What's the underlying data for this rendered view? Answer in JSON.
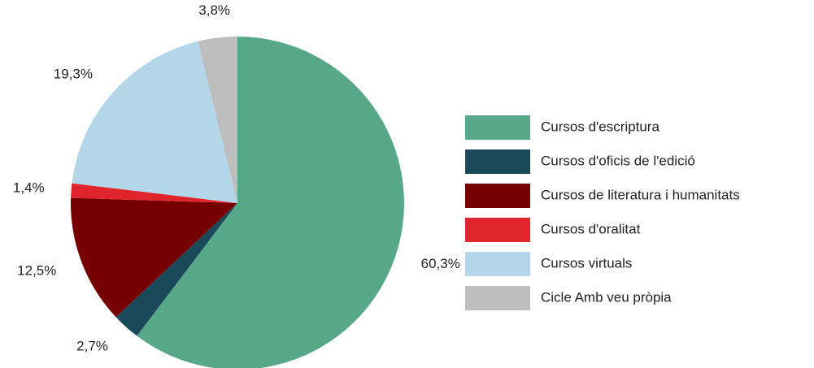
{
  "chart_data": {
    "type": "pie",
    "series": [
      {
        "name": "Cursos d'escriptura",
        "color": "#57a789",
        "values": [
          60.3
        ],
        "value_labels": [
          "60,3%"
        ]
      },
      {
        "name": "Cursos d'oficis de l'edició",
        "color": "#1a4a5a",
        "values": [
          2.7
        ],
        "value_labels": [
          "2,7%"
        ]
      },
      {
        "name": "Cursos de literatura i humanitats",
        "color": "#760000",
        "values": [
          12.5
        ],
        "value_labels": [
          "12,5%"
        ]
      },
      {
        "name": "Cursos d'oralitat",
        "color": "#e0242b",
        "values": [
          1.4
        ],
        "value_labels": [
          "1,4%"
        ]
      },
      {
        "name": "Cursos virtuals",
        "color": "#b3d7e8",
        "values": [
          19.3
        ],
        "value_labels": [
          "19,3%"
        ]
      },
      {
        "name": "Cicle Amb veu pròpia",
        "color": "#bdbdbe",
        "values": [
          3.8
        ],
        "value_labels": [
          "3,8%"
        ]
      }
    ],
    "legend": "right"
  }
}
